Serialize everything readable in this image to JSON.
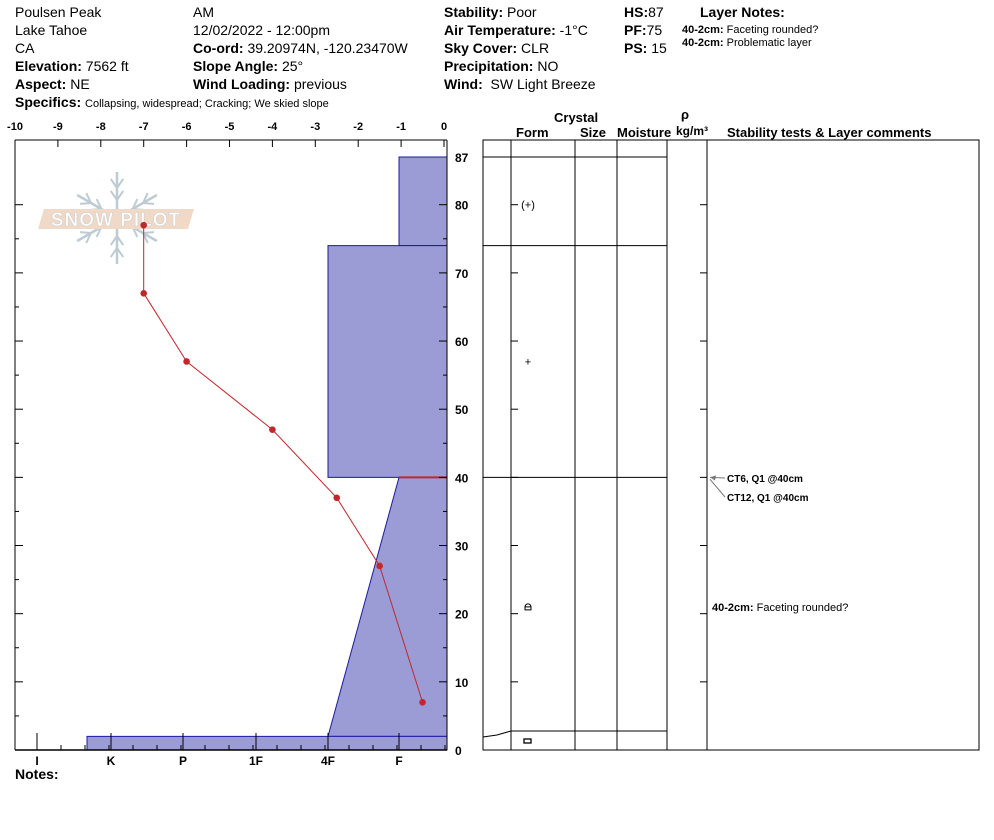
{
  "header": {
    "location": "Poulsen Peak",
    "range": "Lake Tahoe",
    "state": "CA",
    "elevation_label": "Elevation:",
    "elevation": "7562 ft",
    "aspect_label": "Aspect:",
    "aspect": "NE",
    "time_of_day": "AM",
    "datetime": "12/02/2022 - 12:00pm",
    "coord_label": "Co-ord:",
    "coord": "39.20974N, -120.23470W",
    "slope_label": "Slope Angle:",
    "slope": "25°",
    "wind_loading_label": "Wind Loading:",
    "wind_loading": "previous",
    "specifics_label": "Specifics:",
    "specifics": "Collapsing, widespread; Cracking; We skied slope",
    "stability_label": "Stability:",
    "stability": "Poor",
    "air_temp_label": "Air Temperature:",
    "air_temp": "-1°C",
    "sky_label": "Sky Cover:",
    "sky": "CLR",
    "precip_label": "Precipitation:",
    "precip": "NO",
    "wind_label": "Wind:",
    "wind": "SW Light Breeze",
    "hs_label": "HS:",
    "hs": "87",
    "pf_label": "PF:",
    "pf": "75",
    "ps_label": "PS:",
    "ps": "15",
    "layer_notes_title": "Layer Notes:",
    "layer_notes": [
      {
        "range": "40-2cm:",
        "text": "Faceting rounded?"
      },
      {
        "range": "40-2cm:",
        "text": "Problematic layer"
      }
    ]
  },
  "table_headers": {
    "crystal": "Crystal",
    "form": "Form",
    "size": "Size",
    "moisture": "Moisture",
    "rho": "ρ",
    "density_unit": "kg/m³",
    "comments": "Stability tests & Layer comments"
  },
  "notes_label": "Notes:",
  "logo_text": "SNOW PILOT",
  "chart_data": {
    "type": "snow-profile",
    "temperature_axis": {
      "ticks": [
        "-10",
        "-9",
        "-8",
        "-7",
        "-6",
        "-5",
        "-4",
        "-3",
        "-2",
        "-1",
        "0"
      ],
      "range": [
        -10,
        0
      ]
    },
    "depth_axis": {
      "ticks": [
        "87",
        "80",
        "70",
        "60",
        "50",
        "40",
        "30",
        "20",
        "10",
        "0"
      ],
      "range": [
        0,
        87
      ]
    },
    "hardness_axis": {
      "ticks": [
        "I",
        "K",
        "P",
        "1F",
        "4F",
        "F"
      ]
    },
    "temperature_profile": [
      {
        "depth": 77,
        "temp": -7
      },
      {
        "depth": 67,
        "temp": -7
      },
      {
        "depth": 57,
        "temp": -6
      },
      {
        "depth": 47,
        "temp": -4
      },
      {
        "depth": 37,
        "temp": -2.5
      },
      {
        "depth": 27,
        "temp": -1.5
      },
      {
        "depth": 7,
        "temp": -0.5
      }
    ],
    "hardness_layers": [
      {
        "top": 87,
        "bottom": 74,
        "hardness_top": "F",
        "hardness_bottom": "F"
      },
      {
        "top": 74,
        "bottom": 40,
        "hardness_top": "4F",
        "hardness_bottom": "4F"
      },
      {
        "top": 40,
        "bottom": 2,
        "hardness_top": "F",
        "hardness_bottom": "4F"
      },
      {
        "top": 2,
        "bottom": 0,
        "hardness_top": "K-",
        "hardness_bottom": "K-"
      }
    ],
    "layer_boundaries": [
      87,
      74,
      40,
      2
    ],
    "crystal_forms": [
      {
        "depth": 80,
        "symbol": "(+)"
      },
      {
        "depth": 57,
        "symbol": "+"
      },
      {
        "depth": 21,
        "symbol": "rounded-facet"
      },
      {
        "depth": 1,
        "symbol": "facet"
      }
    ],
    "stability_tests": [
      {
        "text": "CT6, Q1 @40cm",
        "depth": 40
      },
      {
        "text": "CT12, Q1 @40cm",
        "depth": 40
      }
    ],
    "layer_comments": [
      {
        "range": "40-2cm:",
        "text": "Faceting rounded?",
        "depth": 21
      }
    ],
    "colors": {
      "hardness_fill": "#9b9bd6",
      "hardness_stroke": "#1a1aa0",
      "temperature": "#c0282c",
      "weak_layer": "#c0282c"
    }
  }
}
